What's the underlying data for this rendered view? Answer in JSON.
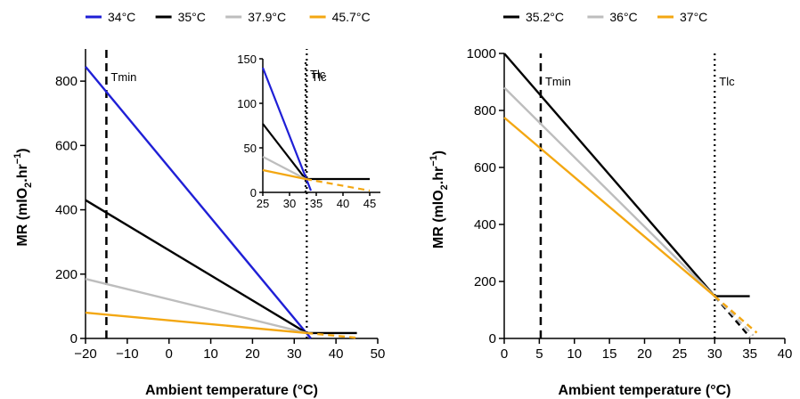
{
  "colors": {
    "blue": "#1f1fd6",
    "black": "#000000",
    "gray": "#bdbdbd",
    "orange": "#f3a712"
  },
  "chart_data": [
    {
      "type": "line",
      "panel": "left",
      "xlabel": "Ambient temperature (°C)",
      "ylabel_main": "MR (mlO",
      "ylabel_sub2": "2",
      "ylabel_mid": ".hr",
      "ylabel_sup": "−1",
      "ylabel_end": ")",
      "xlim": [
        -20,
        50
      ],
      "ylim": [
        0,
        900
      ],
      "xticks": [
        -20,
        -10,
        0,
        10,
        20,
        30,
        40,
        50
      ],
      "xtick_labels": [
        "−20",
        "−10",
        "0",
        "10",
        "20",
        "30",
        "40",
        "50"
      ],
      "yticks": [
        0,
        200,
        400,
        600,
        800
      ],
      "vlines": [
        {
          "label": "Tmin",
          "x": -15,
          "style": "dashed"
        },
        {
          "label": "Tlc",
          "x": 33,
          "style": "dotted"
        }
      ],
      "series": [
        {
          "name": "34°C",
          "color": "blue",
          "solid": [
            [
              -20,
              845
            ],
            [
              34,
              0
            ]
          ],
          "dashed": []
        },
        {
          "name": "35°C",
          "color": "black",
          "solid": [
            [
              -20,
              430
            ],
            [
              33,
              17
            ],
            [
              45,
              17
            ]
          ],
          "dashed": []
        },
        {
          "name": "37.9°C",
          "color": "gray",
          "solid": [
            [
              -20,
              185
            ],
            [
              33,
              17
            ]
          ],
          "dashed": []
        },
        {
          "name": "45.7°C",
          "color": "orange",
          "solid": [
            [
              -20,
              80
            ],
            [
              33,
              17
            ]
          ],
          "dashed": [
            [
              33,
              17
            ],
            [
              45,
              2
            ]
          ]
        }
      ],
      "inset": {
        "xlim": [
          25,
          47
        ],
        "ylim": [
          0,
          150
        ],
        "xticks": [
          25,
          30,
          35,
          40,
          45
        ],
        "yticks": [
          0,
          50,
          100,
          150
        ],
        "vlines": [
          {
            "label": "Tlc",
            "x": 33,
            "style": "dotted"
          }
        ],
        "series": [
          {
            "name": "34°C",
            "color": "blue",
            "solid": [
              [
                25,
                140
              ],
              [
                34,
                2
              ]
            ],
            "dashed": []
          },
          {
            "name": "35°C",
            "color": "black",
            "solid": [
              [
                25,
                77
              ],
              [
                33,
                15
              ],
              [
                45,
                15
              ]
            ],
            "dashed": []
          },
          {
            "name": "37.9°C",
            "color": "gray",
            "solid": [
              [
                25,
                40
              ],
              [
                33,
                15
              ]
            ],
            "dashed": []
          },
          {
            "name": "45.7°C",
            "color": "orange",
            "solid": [
              [
                25,
                25
              ],
              [
                33,
                15
              ]
            ],
            "dashed": [
              [
                33,
                15
              ],
              [
                45,
                2
              ]
            ]
          }
        ]
      }
    },
    {
      "type": "line",
      "panel": "right",
      "xlabel": "Ambient temperature (°C)",
      "ylabel_main": "MR (mlO",
      "ylabel_sub2": "2",
      "ylabel_mid": ".hr",
      "ylabel_sup": "−1",
      "ylabel_end": ")",
      "xlim": [
        0,
        40
      ],
      "ylim": [
        0,
        1000
      ],
      "xticks": [
        0,
        5,
        10,
        15,
        20,
        25,
        30,
        35,
        40
      ],
      "xtick_labels": [
        "0",
        "5",
        "10",
        "15",
        "20",
        "25",
        "30",
        "35",
        "40"
      ],
      "yticks": [
        0,
        200,
        400,
        600,
        800,
        1000
      ],
      "vlines": [
        {
          "label": "Tmin",
          "x": 5.2,
          "style": "dashed"
        },
        {
          "label": "Tlc",
          "x": 30,
          "style": "dotted"
        }
      ],
      "series": [
        {
          "name": "35.2°C",
          "color": "black",
          "solid": [
            [
              0,
              1000
            ],
            [
              30,
              148
            ],
            [
              35,
              148
            ]
          ],
          "dashed": [
            [
              30,
              148
            ],
            [
              35,
              5
            ]
          ]
        },
        {
          "name": "36°C",
          "color": "gray",
          "solid": [
            [
              0,
              880
            ],
            [
              30,
              148
            ]
          ],
          "dashed": [
            [
              30,
              148
            ],
            [
              35.5,
              10
            ]
          ]
        },
        {
          "name": "37°C",
          "color": "orange",
          "solid": [
            [
              0,
              775
            ],
            [
              30,
              148
            ]
          ],
          "dashed": [
            [
              30,
              148
            ],
            [
              36,
              20
            ]
          ]
        }
      ]
    }
  ]
}
